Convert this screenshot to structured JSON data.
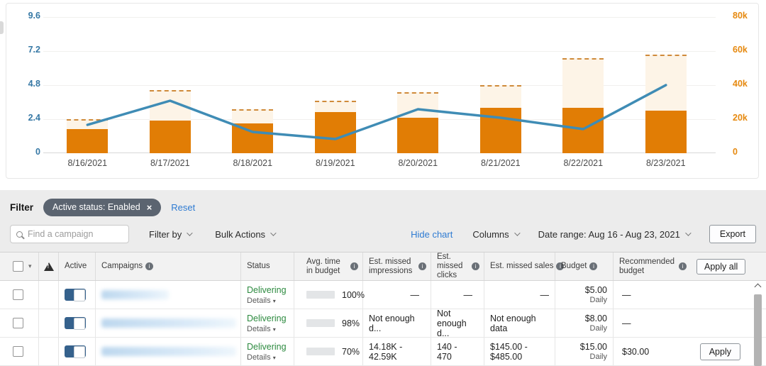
{
  "chart_data": {
    "type": "bar+line",
    "categories": [
      "8/16/2021",
      "8/17/2021",
      "8/18/2021",
      "8/19/2021",
      "8/20/2021",
      "8/21/2021",
      "8/22/2021",
      "8/23/2021"
    ],
    "series": [
      {
        "name": "spend-bars",
        "type": "bar",
        "axis": "right",
        "color": "#e17d05",
        "values": [
          14000,
          19000,
          17500,
          24000,
          21000,
          26500,
          26500,
          25000
        ]
      },
      {
        "name": "budget-caps-dashed",
        "type": "dashed-cap",
        "axis": "right",
        "color": "#cf8a3a",
        "fill": "#fdf4e7",
        "values": [
          20000,
          37000,
          26000,
          31000,
          36000,
          40000,
          56000,
          58000
        ]
      },
      {
        "name": "metric-line",
        "type": "line",
        "axis": "left",
        "color": "#3f8cb5",
        "values": [
          2.0,
          3.7,
          1.5,
          1.0,
          3.1,
          2.5,
          1.7,
          4.8
        ]
      }
    ],
    "left_axis": {
      "ticks": [
        "0",
        "2.4",
        "4.8",
        "7.2",
        "9.6"
      ],
      "max": 9.6,
      "color": "#3678a5"
    },
    "right_axis": {
      "ticks": [
        "0",
        "20k",
        "40k",
        "60k",
        "80k"
      ],
      "max": 80000,
      "color": "#e6890f"
    },
    "grid": true,
    "legend": false
  },
  "colors": {
    "bar_orange": "#e17d05",
    "line_blue": "#3f8cb5",
    "link_blue": "#2e7bd2",
    "delivering_green": "#2c8a3f",
    "toggle_blue": "#35618c",
    "progress_blue": "#3178b5",
    "pill_gray": "#5b6470"
  },
  "filter_bar": {
    "label": "Filter",
    "pill_text": "Active status: Enabled",
    "pill_close": "×",
    "reset_label": "Reset"
  },
  "toolbar": {
    "search_placeholder": "Find a campaign",
    "filter_by_label": "Filter by",
    "bulk_actions_label": "Bulk Actions",
    "hide_chart_label": "Hide chart",
    "columns_label": "Columns",
    "date_range_label": "Date range: Aug 16 - Aug 23, 2021",
    "export_label": "Export"
  },
  "table": {
    "headers": {
      "active": "Active",
      "campaigns": "Campaigns",
      "status": "Status",
      "avg_time": "Avg. time in budget",
      "est_impressions": "Est. missed impressions",
      "est_clicks": "Est. missed clicks",
      "est_sales": "Est. missed sales",
      "budget": "Budget",
      "recommended": "Recommended budget"
    },
    "apply_all_label": "Apply all",
    "rows": [
      {
        "status": "Delivering",
        "status_sub": "Details",
        "pct": 100,
        "pct_label": "100%",
        "impressions": "—",
        "clicks": "—",
        "sales": "—",
        "budget": "$5.00",
        "budget_cadence": "Daily",
        "recommended": "—",
        "action": null,
        "blur_width": 95
      },
      {
        "status": "Delivering",
        "status_sub": "Details",
        "pct": 98,
        "pct_label": "98%",
        "impressions": "Not enough d...",
        "clicks": "Not enough d...",
        "sales": "Not enough data",
        "budget": "$8.00",
        "budget_cadence": "Daily",
        "recommended": "—",
        "action": null,
        "blur_width": 240
      },
      {
        "status": "Delivering",
        "status_sub": "Details",
        "pct": 70,
        "pct_label": "70%",
        "impressions": "14.18K - 42.59K",
        "clicks": "140 - 470",
        "sales": "$145.00 - $485.00",
        "budget": "$15.00",
        "budget_cadence": "Daily",
        "recommended": "$30.00",
        "action": "Apply",
        "blur_width": 215
      }
    ]
  }
}
